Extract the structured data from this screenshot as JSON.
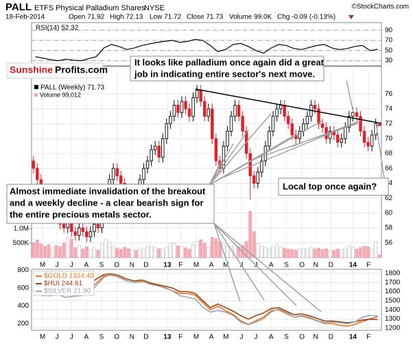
{
  "header": {
    "symbol": "PALL",
    "name": "ETFS Physical Palladium Shares",
    "exchange": "NYSE",
    "date": "18-Feb-2014",
    "quote": [
      "Open 71.92",
      "High 72.13",
      "Low 71.72",
      "Close 71.73",
      "Volume 99.0K",
      "Chg -0.09 (-0.13%)"
    ],
    "watermark": "©StockCharts.com"
  },
  "logo": {
    "part1": "Sunshine",
    "part2": "Profits.com"
  },
  "annotations": [
    {
      "lines": [
        "It looks like palladium once again did a great",
        "job in indicating entire sector's next move."
      ]
    },
    {
      "lines": [
        "Almost immediate invalidation of the breakout",
        "and a weekly decline - a clear bearish sign for",
        "the entire precious metals sector."
      ]
    },
    {
      "lines": [
        "Local top once again?"
      ]
    }
  ],
  "chart_data": [
    {
      "type": "line",
      "title": "RSI(14) 52.32",
      "color": "#000000",
      "xlim": [
        0,
        46
      ],
      "ylim": [
        20,
        105
      ],
      "yticks": [
        30,
        50,
        70,
        90
      ],
      "grid": true,
      "values": [
        38,
        35,
        32,
        30,
        33,
        31,
        30,
        34,
        38,
        55,
        62,
        58,
        52,
        55,
        60,
        63,
        66,
        68,
        70,
        66,
        68,
        72,
        70,
        60,
        48,
        52,
        62,
        64,
        58,
        50,
        45,
        55,
        62,
        60,
        54,
        52,
        56,
        60,
        62,
        55,
        52,
        54,
        58,
        60,
        50,
        52.32
      ]
    },
    {
      "type": "candlestick",
      "title": "PALL (Weekly) 71.73",
      "volume_label": "Volume 99,012",
      "up_color": "#000000",
      "down_color": "#e0202a",
      "volume_up_color": "#c8c8c8",
      "volume_down_color": "#f2aab4",
      "grid": true,
      "xlim": [
        0,
        92
      ],
      "ylim": [
        54,
        79.7
      ],
      "yticks": [
        56,
        58,
        60,
        62,
        64,
        66,
        68,
        70,
        72,
        74,
        76
      ],
      "volume_lim": [
        0,
        6600000
      ],
      "volume_ticks": [
        {
          "value": 500000,
          "label": "500K"
        },
        {
          "value": 1000000,
          "label": "1.0M"
        }
      ],
      "xticks": [
        {
          "value": 2.9,
          "label": "M"
        },
        {
          "value": 6.7,
          "label": "J"
        },
        {
          "value": 10.5,
          "label": "J"
        },
        {
          "value": 14.4,
          "label": "A"
        },
        {
          "value": 18.4,
          "label": "S"
        },
        {
          "value": 22.4,
          "label": "O"
        },
        {
          "value": 26.4,
          "label": "N"
        },
        {
          "value": 30.1,
          "label": "D"
        },
        {
          "value": 35.7,
          "label": "13"
        },
        {
          "value": 39.2,
          "label": "F"
        },
        {
          "value": 43.3,
          "label": "M"
        },
        {
          "value": 47.3,
          "label": "A"
        },
        {
          "value": 51.1,
          "label": "M"
        },
        {
          "value": 55.2,
          "label": "J"
        },
        {
          "value": 59,
          "label": "J"
        },
        {
          "value": 63,
          "label": "A"
        },
        {
          "value": 67,
          "label": "S"
        },
        {
          "value": 71.1,
          "label": "O"
        },
        {
          "value": 74.7,
          "label": "N"
        },
        {
          "value": 78.7,
          "label": "D"
        },
        {
          "value": 84.5,
          "label": "14"
        },
        {
          "value": 88.6,
          "label": "F"
        }
      ],
      "open": [
        67,
        66,
        64.5,
        63,
        61,
        60,
        60.5,
        59.5,
        58.5,
        58,
        59,
        57.5,
        57,
        58,
        57.5,
        56.8,
        57.5,
        58.5,
        58,
        60,
        63,
        64.5,
        66,
        65,
        64,
        62.5,
        61,
        63,
        62,
        64.5,
        66,
        67,
        68.5,
        69,
        67.5,
        70,
        72,
        73,
        74.5,
        73.5,
        75,
        74,
        73,
        75.5,
        76.5,
        75,
        73,
        74,
        70,
        67,
        66,
        69,
        71,
        73,
        74.5,
        73,
        71,
        68,
        65,
        64,
        65.5,
        67,
        69,
        71,
        73,
        74,
        74.5,
        73,
        72,
        70.5,
        70,
        71,
        72,
        73,
        74.5,
        74,
        72,
        71.5,
        70,
        71,
        70.5,
        69.5,
        70,
        71.5,
        73,
        73.5,
        73,
        71,
        69.5,
        69,
        70.5,
        71.92
      ],
      "high": [
        67.7,
        66.7,
        65.2,
        63.7,
        61.7,
        61.2,
        61.2,
        60.2,
        59.2,
        59.7,
        59.7,
        58.2,
        58.7,
        58.7,
        58.2,
        58.2,
        59.2,
        59.2,
        60.7,
        63.7,
        65.2,
        66.7,
        66.7,
        65.7,
        64.7,
        63.2,
        63.7,
        63.7,
        65.2,
        66.7,
        67.7,
        69.2,
        69.7,
        69.7,
        70.7,
        72.7,
        73.7,
        75.2,
        75.2,
        75.7,
        75.7,
        74.7,
        76.2,
        77.2,
        77.2,
        75.7,
        74.7,
        74.7,
        70.7,
        67.7,
        69.7,
        71.7,
        73.7,
        75.2,
        75.2,
        73.7,
        71.7,
        68.7,
        65.7,
        66.2,
        67.7,
        69.7,
        71.7,
        73.7,
        74.7,
        75.2,
        75.2,
        73.7,
        72.7,
        71.2,
        71.7,
        72.7,
        73.7,
        75.2,
        75.2,
        74.7,
        72.7,
        72.2,
        71.7,
        71.7,
        71.2,
        70.7,
        72.2,
        73.7,
        74.2,
        74.2,
        73.7,
        71.7,
        70.2,
        71.2,
        72.7,
        72.13
      ],
      "low": [
        65.3,
        63.8,
        62.3,
        60.3,
        59.3,
        59.3,
        58.8,
        57.8,
        57.3,
        57.3,
        56.8,
        56.3,
        56.3,
        56.8,
        56.1,
        56.1,
        56.8,
        57.3,
        57.3,
        59.3,
        62.3,
        63.8,
        64.3,
        63.3,
        61.8,
        60.3,
        60.3,
        61.3,
        61.3,
        63.8,
        65.3,
        66.3,
        67.8,
        66.8,
        66.8,
        69.3,
        71.3,
        72.3,
        72.8,
        72.8,
        73.3,
        72.3,
        72.3,
        74.8,
        74.3,
        72.3,
        72.3,
        69.3,
        66.3,
        65.3,
        65.3,
        68.3,
        70.3,
        72.3,
        72.3,
        70.3,
        67.3,
        61.8,
        63.3,
        63.3,
        64.8,
        66.3,
        68.3,
        70.3,
        72.3,
        73.3,
        72.3,
        71.3,
        69.8,
        69.3,
        69.3,
        70.3,
        71.3,
        72.3,
        73.3,
        71.3,
        70.8,
        69.3,
        69.3,
        69.8,
        68.8,
        68.8,
        69.3,
        70.8,
        72.3,
        72.3,
        70.3,
        68.8,
        68.3,
        68.3,
        69.8,
        71.72
      ],
      "close": [
        66,
        64.5,
        63,
        61,
        60,
        60.5,
        59.5,
        58.5,
        58,
        59,
        57.5,
        57,
        58,
        57.5,
        56.8,
        57.5,
        58.5,
        58,
        60,
        63,
        64.5,
        66,
        65,
        64,
        62.5,
        61,
        63,
        62,
        64.5,
        66,
        67,
        68.5,
        69,
        67.5,
        70,
        72,
        73,
        74.5,
        73.5,
        75,
        74,
        73,
        75.5,
        76.5,
        75,
        73,
        74,
        70,
        67,
        66,
        69,
        71,
        73,
        74.5,
        73,
        71,
        68,
        65,
        64,
        65.5,
        67,
        69,
        71,
        73,
        74,
        74.5,
        73,
        72,
        70.5,
        70,
        71,
        72,
        73,
        74.5,
        74,
        72,
        71.5,
        70,
        71,
        70.5,
        69.5,
        70,
        71.5,
        73,
        73.5,
        73,
        71,
        69.5,
        69,
        70.5,
        72,
        71.73
      ],
      "volume": [
        520000,
        610000,
        480000,
        390000,
        450000,
        300000,
        420000,
        380000,
        510000,
        700000,
        640000,
        350000,
        420000,
        300000,
        380000,
        280000,
        350000,
        260000,
        480000,
        620000,
        550000,
        400000,
        330000,
        290000,
        360000,
        310000,
        280000,
        250000,
        300000,
        330000,
        380000,
        420000,
        350000,
        310000,
        300000,
        360000,
        520000,
        480000,
        410000,
        380000,
        340000,
        300000,
        450000,
        560000,
        620000,
        500000,
        380000,
        700000,
        650000,
        560000,
        480000,
        420000,
        390000,
        450000,
        380000,
        420000,
        560000,
        1600000,
        900000,
        480000,
        400000,
        350000,
        300000,
        380000,
        450000,
        360000,
        330000,
        300000,
        280000,
        260000,
        300000,
        320000,
        290000,
        350000,
        300000,
        330000,
        280000,
        310000,
        260000,
        250000,
        300000,
        280000,
        330000,
        420000,
        360000,
        300000,
        350000,
        400000,
        380000,
        300000,
        560000,
        99012
      ]
    },
    {
      "type": "line",
      "legend": "upper left",
      "grid": true,
      "xlim": [
        0,
        46
      ],
      "ylim": [
        1175,
        1845
      ],
      "yticks": [
        1200,
        1300,
        1400,
        1500,
        1600,
        1700,
        1800
      ],
      "y2lim": [
        125,
        810
      ],
      "y2ticks": [
        200,
        400,
        600,
        800
      ],
      "y3lim": [
        17.5,
        36
      ],
      "xticks": [
        {
          "value": 1.45,
          "label": "M"
        },
        {
          "value": 3.35,
          "label": "J"
        },
        {
          "value": 5.25,
          "label": "J"
        },
        {
          "value": 7.2,
          "label": "A"
        },
        {
          "value": 9.2,
          "label": "S"
        },
        {
          "value": 11.2,
          "label": "O"
        },
        {
          "value": 13.2,
          "label": "N"
        },
        {
          "value": 15.05,
          "label": "D"
        },
        {
          "value": 17.85,
          "label": "13"
        },
        {
          "value": 19.6,
          "label": "F"
        },
        {
          "value": 21.65,
          "label": "M"
        },
        {
          "value": 23.65,
          "label": "A"
        },
        {
          "value": 25.55,
          "label": "M"
        },
        {
          "value": 27.6,
          "label": "J"
        },
        {
          "value": 29.5,
          "label": "J"
        },
        {
          "value": 31.5,
          "label": "A"
        },
        {
          "value": 33.5,
          "label": "S"
        },
        {
          "value": 35.55,
          "label": "O"
        },
        {
          "value": 37.35,
          "label": "N"
        },
        {
          "value": 39.35,
          "label": "D"
        },
        {
          "value": 42.25,
          "label": "14"
        },
        {
          "value": 44.3,
          "label": "F"
        }
      ],
      "series": [
        {
          "name": "$GOLD 1324.40",
          "color": "#e8731e",
          "axis": "y",
          "values": [
            1580,
            1560,
            1590,
            1600,
            1580,
            1600,
            1620,
            1610,
            1690,
            1770,
            1780,
            1760,
            1720,
            1700,
            1710,
            1690,
            1670,
            1640,
            1610,
            1580,
            1580,
            1560,
            1480,
            1400,
            1440,
            1390,
            1350,
            1280,
            1240,
            1280,
            1320,
            1390,
            1400,
            1360,
            1320,
            1330,
            1310,
            1280,
            1250,
            1250,
            1230,
            1220,
            1240,
            1270,
            1300,
            1324.4
          ]
        },
        {
          "name": "$HUI 244.61",
          "color": "#a0400e",
          "axis": "y2",
          "values": [
            620,
            590,
            600,
            610,
            590,
            620,
            650,
            640,
            700,
            750,
            760,
            740,
            700,
            680,
            690,
            660,
            640,
            620,
            600,
            560,
            560,
            540,
            460,
            380,
            420,
            380,
            340,
            290,
            250,
            290,
            320,
            370,
            380,
            340,
            300,
            310,
            290,
            260,
            230,
            230,
            220,
            210,
            220,
            240,
            250,
            244.61
          ]
        },
        {
          "name": "$SILVER 21.90",
          "color": "#98a6b4",
          "axis": "y3",
          "values": [
            28.5,
            28,
            28,
            28.3,
            27.5,
            27.8,
            28,
            28.5,
            31,
            33.5,
            34.5,
            33.5,
            32.5,
            32,
            32.5,
            31.5,
            31,
            30.5,
            29.5,
            28,
            27.5,
            27,
            24.5,
            23,
            23.5,
            23,
            22,
            20,
            19.2,
            20,
            21,
            23,
            24,
            23,
            21.5,
            22,
            21.5,
            20.5,
            19.8,
            20,
            19.8,
            19.5,
            20,
            21.5,
            22,
            21.9
          ]
        }
      ]
    }
  ]
}
